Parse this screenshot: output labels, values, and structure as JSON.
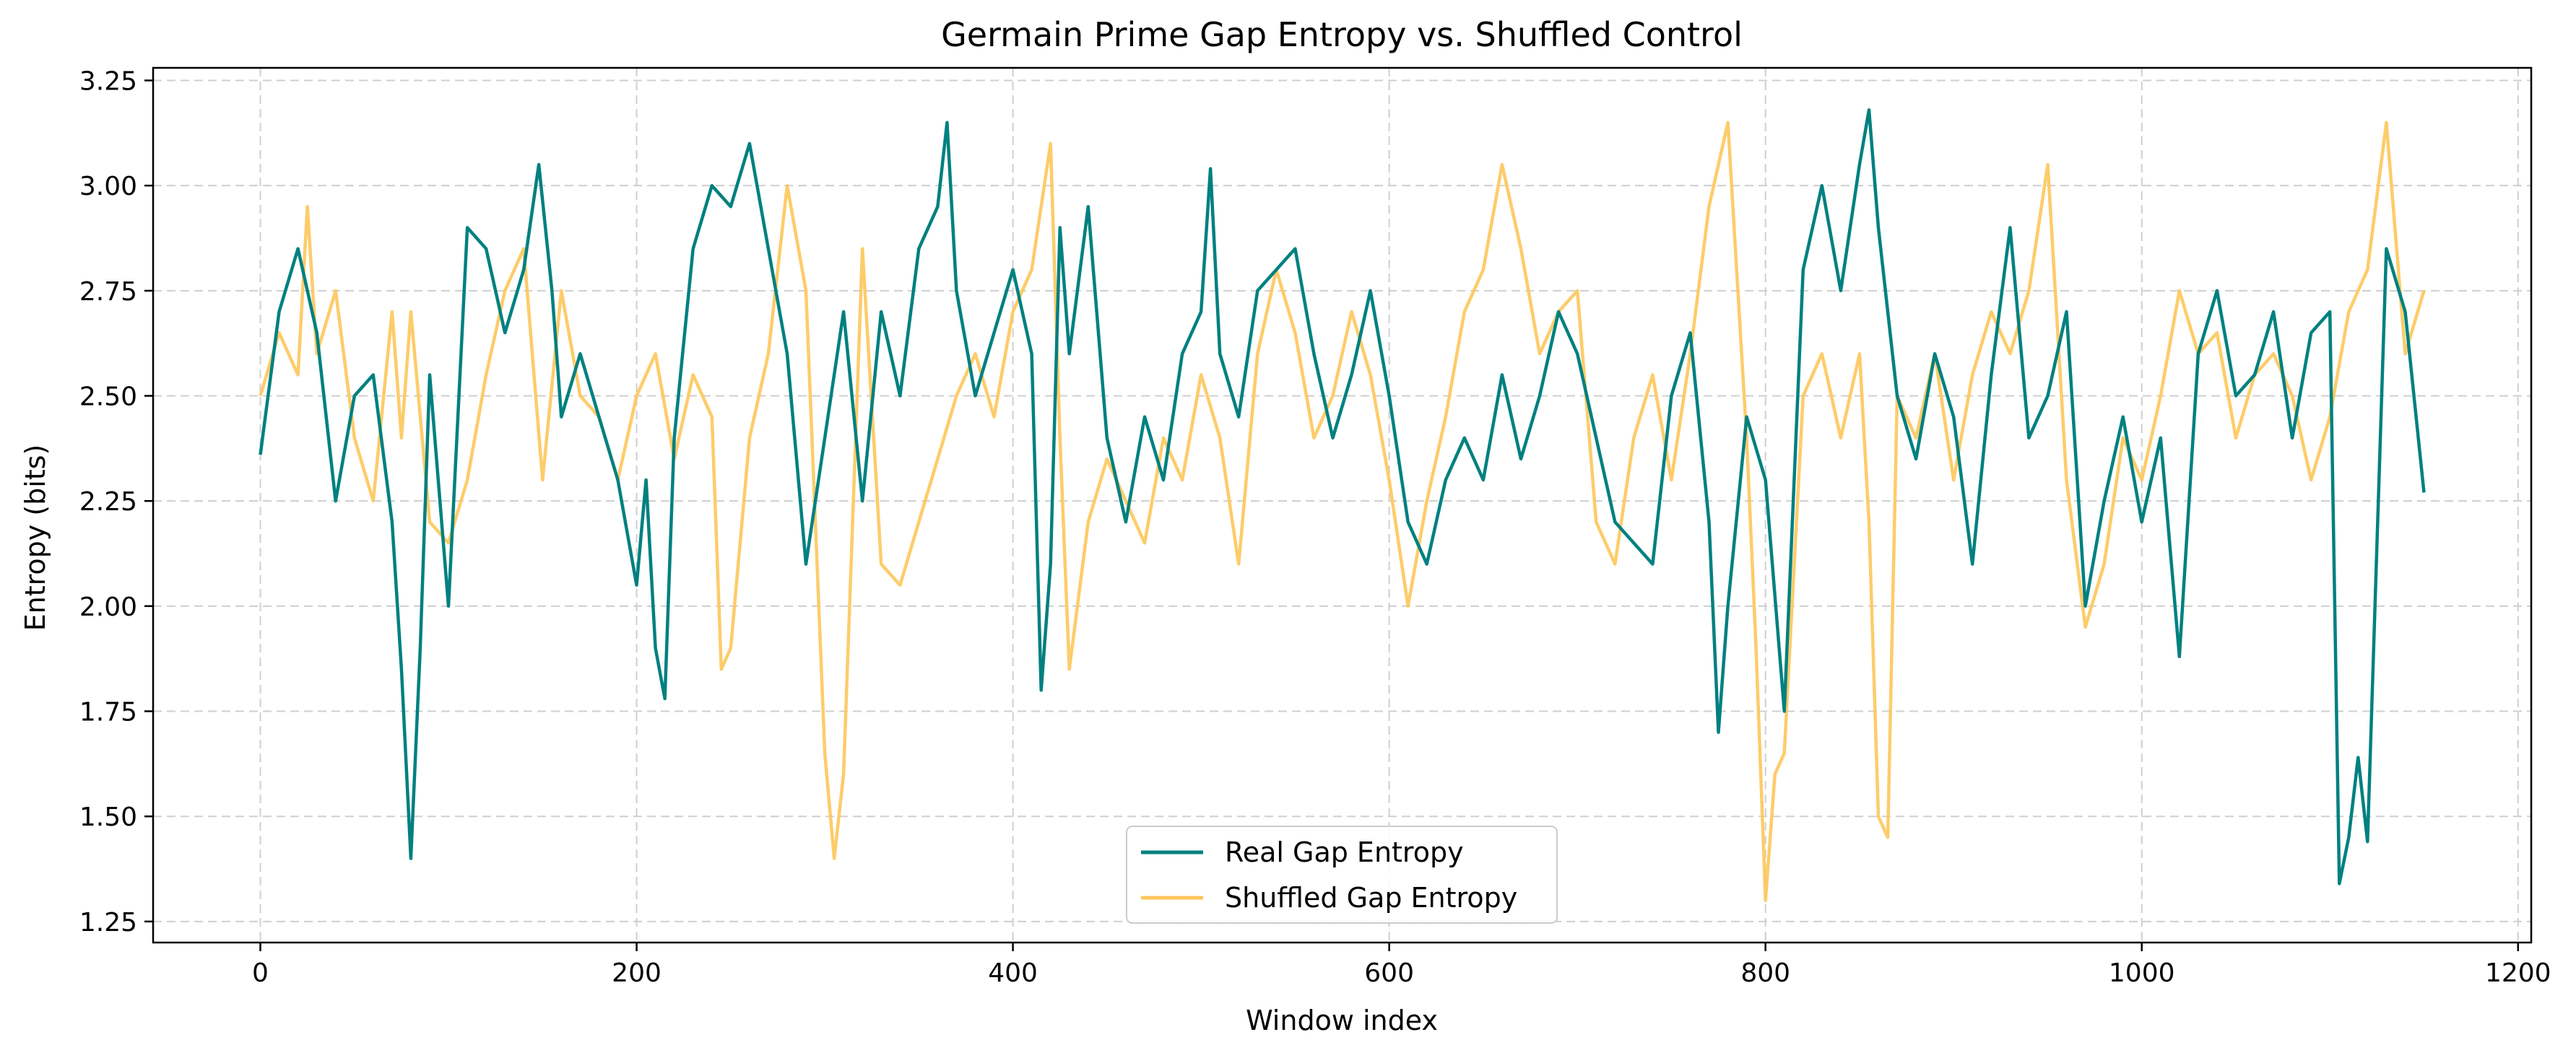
{
  "chart_data": {
    "type": "line",
    "title": "Germain Prime Gap Entropy vs. Shuffled Control",
    "xlabel": "Window index",
    "ylabel": "Entropy (bits)",
    "xlim": [
      -57,
      1207
    ],
    "ylim": [
      1.2,
      3.28
    ],
    "xticks": [
      0,
      200,
      400,
      600,
      800,
      1000,
      1200
    ],
    "yticks": [
      1.25,
      1.5,
      1.75,
      2.0,
      2.25,
      2.5,
      2.75,
      3.0,
      3.25
    ],
    "ytick_labels": [
      "1.25",
      "1.50",
      "1.75",
      "2.00",
      "2.25",
      "2.50",
      "2.75",
      "3.00",
      "3.25"
    ],
    "grid": true,
    "legend_position": "bottom-center",
    "series": [
      {
        "name": "Real Gap Entropy",
        "color": "#008080",
        "x": [
          0,
          10,
          20,
          30,
          40,
          50,
          60,
          70,
          75,
          80,
          85,
          90,
          100,
          110,
          120,
          130,
          140,
          148,
          155,
          160,
          170,
          180,
          190,
          200,
          205,
          210,
          215,
          220,
          230,
          240,
          250,
          260,
          270,
          280,
          290,
          300,
          310,
          320,
          330,
          340,
          350,
          360,
          365,
          370,
          380,
          390,
          400,
          410,
          415,
          420,
          425,
          430,
          440,
          450,
          460,
          470,
          480,
          490,
          500,
          505,
          510,
          520,
          530,
          540,
          550,
          560,
          570,
          580,
          590,
          600,
          610,
          620,
          630,
          640,
          650,
          660,
          670,
          680,
          690,
          700,
          710,
          720,
          730,
          740,
          750,
          760,
          770,
          775,
          780,
          790,
          800,
          810,
          820,
          830,
          840,
          850,
          855,
          860,
          870,
          880,
          890,
          900,
          910,
          920,
          930,
          940,
          950,
          960,
          970,
          980,
          990,
          1000,
          1010,
          1020,
          1030,
          1040,
          1050,
          1060,
          1070,
          1080,
          1090,
          1100,
          1105,
          1110,
          1115,
          1120,
          1130,
          1140,
          1150
        ],
        "values": [
          2.36,
          2.7,
          2.85,
          2.65,
          2.25,
          2.5,
          2.55,
          2.2,
          1.85,
          1.4,
          1.9,
          2.55,
          2.0,
          2.9,
          2.85,
          2.65,
          2.8,
          3.05,
          2.75,
          2.45,
          2.6,
          2.45,
          2.3,
          2.05,
          2.3,
          1.9,
          1.78,
          2.4,
          2.85,
          3.0,
          2.95,
          3.1,
          2.85,
          2.6,
          2.1,
          2.4,
          2.7,
          2.25,
          2.7,
          2.5,
          2.85,
          2.95,
          3.15,
          2.75,
          2.5,
          2.65,
          2.8,
          2.6,
          1.8,
          2.1,
          2.9,
          2.6,
          2.95,
          2.4,
          2.2,
          2.45,
          2.3,
          2.6,
          2.7,
          3.04,
          2.6,
          2.45,
          2.75,
          2.8,
          2.85,
          2.6,
          2.4,
          2.55,
          2.75,
          2.5,
          2.2,
          2.1,
          2.3,
          2.4,
          2.3,
          2.55,
          2.35,
          2.5,
          2.7,
          2.6,
          2.4,
          2.2,
          2.15,
          2.1,
          2.5,
          2.65,
          2.2,
          1.7,
          2.0,
          2.45,
          2.3,
          1.75,
          2.8,
          3.0,
          2.75,
          3.05,
          3.18,
          2.9,
          2.5,
          2.35,
          2.6,
          2.45,
          2.1,
          2.55,
          2.9,
          2.4,
          2.5,
          2.7,
          2.0,
          2.25,
          2.45,
          2.2,
          2.4,
          1.88,
          2.6,
          2.75,
          2.5,
          2.55,
          2.7,
          2.4,
          2.65,
          2.7,
          1.34,
          1.45,
          1.64,
          1.44,
          2.85,
          2.7,
          2.27
        ]
      },
      {
        "name": "Shuffled Gap Entropy",
        "color": "#fdc65a",
        "x": [
          0,
          10,
          20,
          25,
          30,
          40,
          50,
          60,
          70,
          75,
          80,
          90,
          100,
          110,
          120,
          130,
          140,
          150,
          160,
          170,
          180,
          190,
          200,
          210,
          220,
          230,
          240,
          245,
          250,
          260,
          270,
          280,
          290,
          300,
          305,
          310,
          320,
          330,
          340,
          350,
          360,
          370,
          380,
          390,
          400,
          410,
          420,
          425,
          430,
          440,
          450,
          460,
          470,
          480,
          490,
          500,
          510,
          520,
          530,
          540,
          550,
          560,
          570,
          580,
          590,
          600,
          610,
          620,
          630,
          640,
          650,
          660,
          670,
          680,
          690,
          700,
          710,
          720,
          730,
          740,
          750,
          760,
          770,
          780,
          790,
          795,
          800,
          805,
          810,
          820,
          830,
          840,
          850,
          855,
          860,
          865,
          870,
          880,
          890,
          900,
          910,
          920,
          930,
          940,
          950,
          960,
          970,
          980,
          990,
          1000,
          1010,
          1020,
          1030,
          1040,
          1050,
          1060,
          1070,
          1080,
          1090,
          1100,
          1110,
          1120,
          1130,
          1140,
          1150
        ],
        "values": [
          2.5,
          2.65,
          2.55,
          2.95,
          2.6,
          2.75,
          2.4,
          2.25,
          2.7,
          2.4,
          2.7,
          2.2,
          2.15,
          2.3,
          2.55,
          2.75,
          2.85,
          2.3,
          2.75,
          2.5,
          2.45,
          2.3,
          2.5,
          2.6,
          2.35,
          2.55,
          2.45,
          1.85,
          1.9,
          2.4,
          2.6,
          3.0,
          2.75,
          1.65,
          1.4,
          1.6,
          2.85,
          2.1,
          2.05,
          2.2,
          2.35,
          2.5,
          2.6,
          2.45,
          2.7,
          2.8,
          3.1,
          2.4,
          1.85,
          2.2,
          2.35,
          2.25,
          2.15,
          2.4,
          2.3,
          2.55,
          2.4,
          2.1,
          2.6,
          2.8,
          2.65,
          2.4,
          2.5,
          2.7,
          2.55,
          2.3,
          2.0,
          2.25,
          2.45,
          2.7,
          2.8,
          3.05,
          2.85,
          2.6,
          2.7,
          2.75,
          2.2,
          2.1,
          2.4,
          2.55,
          2.3,
          2.6,
          2.95,
          3.15,
          2.4,
          1.9,
          1.3,
          1.6,
          1.65,
          2.5,
          2.6,
          2.4,
          2.6,
          2.2,
          1.5,
          1.45,
          2.5,
          2.4,
          2.6,
          2.3,
          2.55,
          2.7,
          2.6,
          2.75,
          3.05,
          2.3,
          1.95,
          2.1,
          2.4,
          2.3,
          2.5,
          2.75,
          2.6,
          2.65,
          2.4,
          2.55,
          2.6,
          2.5,
          2.3,
          2.45,
          2.7,
          2.8,
          3.15,
          2.6,
          2.75
        ]
      }
    ]
  }
}
